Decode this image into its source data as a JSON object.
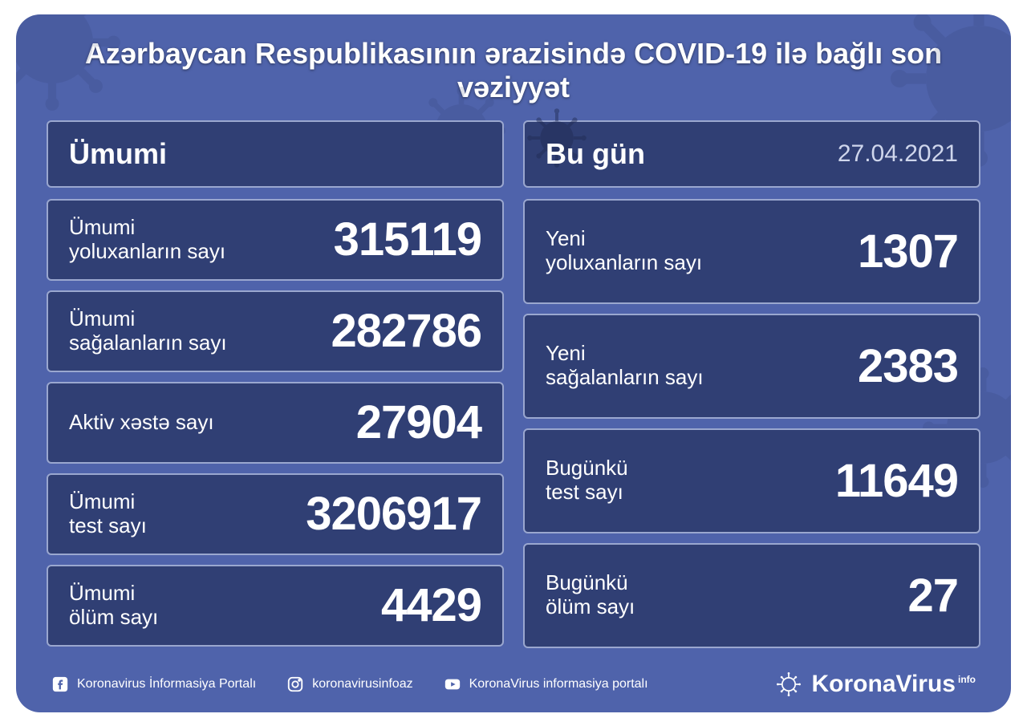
{
  "colors": {
    "card_bg": "#4f63ab",
    "panel_bg": "#303f74",
    "panel_border": "#9aa7cf",
    "text": "#ffffff",
    "date_text": "#cfd6ec"
  },
  "type": "infographic",
  "title": "Azərbaycan Respublikasının ərazisində COVID-19 ilə bağlı son vəziyyət",
  "left_panel": {
    "title": "Ümumi",
    "rows": [
      {
        "label": "Ümumi\nyoluxanların sayı",
        "value": "315119"
      },
      {
        "label": "Ümumi\nsağalanların sayı",
        "value": "282786"
      },
      {
        "label": "Aktiv xəstə sayı",
        "value": "27904"
      },
      {
        "label": "Ümumi\ntest sayı",
        "value": "3206917"
      },
      {
        "label": "Ümumi\nölüm sayı",
        "value": "4429"
      }
    ]
  },
  "right_panel": {
    "title": "Bu gün",
    "date": "27.04.2021",
    "rows": [
      {
        "label": "Yeni\nyoluxanların sayı",
        "value": "1307"
      },
      {
        "label": "Yeni\nsağalanların sayı",
        "value": "2383"
      },
      {
        "label": "Bugünkü\ntest sayı",
        "value": "11649"
      },
      {
        "label": "Bugünkü\nölüm sayı",
        "value": "27"
      }
    ]
  },
  "footer": {
    "facebook": "Koronavirus İnformasiya Portalı",
    "instagram": "koronavirusinfoaz",
    "youtube": "KoronaVirus informasiya portalı",
    "brand": "KoronaVirus",
    "brand_suffix": "info"
  }
}
